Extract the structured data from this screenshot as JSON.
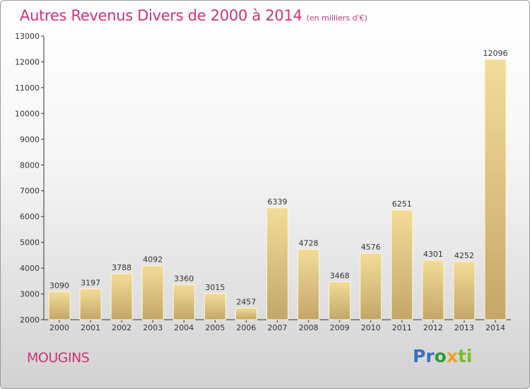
{
  "chart_data": {
    "type": "bar",
    "title": "Autres Revenus Divers de 2000 à 2014",
    "subtitle": "(en milliers d'€)",
    "categories": [
      "2000",
      "2001",
      "2002",
      "2003",
      "2004",
      "2005",
      "2006",
      "2007",
      "2008",
      "2009",
      "2010",
      "2011",
      "2012",
      "2013",
      "2014"
    ],
    "values": [
      3090,
      3197,
      3788,
      4092,
      3360,
      3015,
      2457,
      6339,
      4728,
      3468,
      4576,
      6251,
      4301,
      4252,
      12096
    ],
    "ylim": [
      2000,
      13000
    ],
    "yticks": [
      2000,
      3000,
      4000,
      5000,
      6000,
      7000,
      8000,
      9000,
      10000,
      11000,
      12000,
      13000
    ],
    "xlabel": "",
    "ylabel": "",
    "grid": false,
    "bar_color": "#e8cf8a"
  },
  "footer": {
    "city": "MOUGINS",
    "logo": {
      "p": "Pr",
      "o": "o",
      "x": "x",
      "i": "i",
      "t": "ti"
    }
  }
}
